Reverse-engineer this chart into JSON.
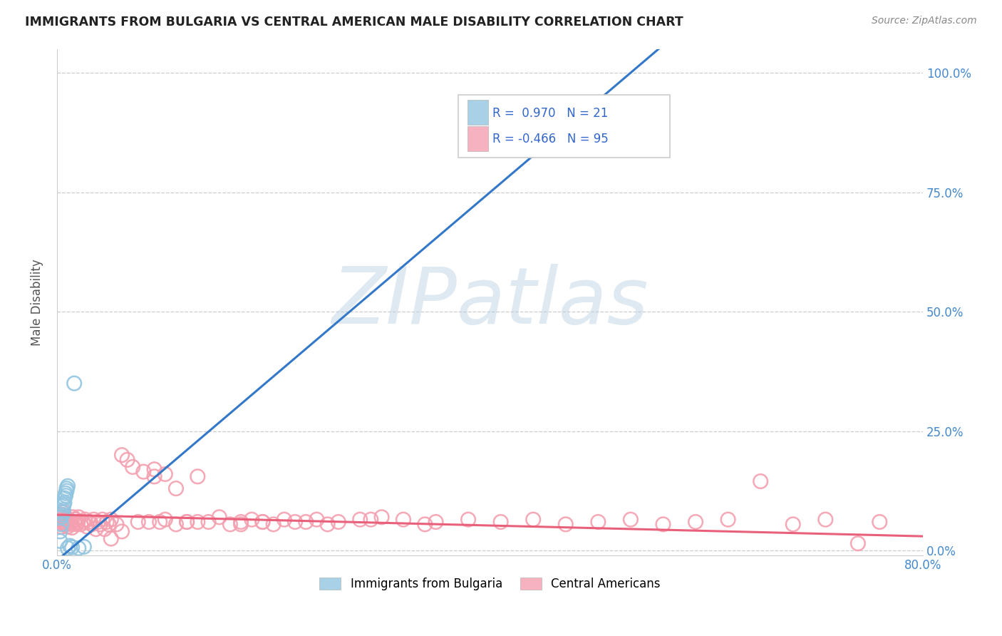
{
  "title": "IMMIGRANTS FROM BULGARIA VS CENTRAL AMERICAN MALE DISABILITY CORRELATION CHART",
  "source": "Source: ZipAtlas.com",
  "ylabel": "Male Disability",
  "xlim": [
    0.0,
    0.8
  ],
  "ylim": [
    -0.01,
    1.05
  ],
  "yticks": [
    0.0,
    0.25,
    0.5,
    0.75,
    1.0
  ],
  "ytick_labels": [
    "0.0%",
    "25.0%",
    "50.0%",
    "75.0%",
    "100.0%"
  ],
  "xticks": [
    0.0,
    0.1,
    0.2,
    0.3,
    0.4,
    0.5,
    0.6,
    0.7,
    0.8
  ],
  "xtick_labels_show": [
    "0.0%",
    "",
    "",
    "",
    "",
    "",
    "",
    "",
    "80.0%"
  ],
  "legend_label_bulgaria": "Immigrants from Bulgaria",
  "legend_label_central": "Central Americans",
  "watermark": "ZIPatlas",
  "blue_color": "#92C5E0",
  "blue_line_color": "#3378C8",
  "pink_color": "#F4A0B0",
  "pink_line_color": "#E8607A",
  "blue_scatter_x": [
    0.003,
    0.003,
    0.004,
    0.004,
    0.005,
    0.005,
    0.006,
    0.006,
    0.007,
    0.007,
    0.008,
    0.008,
    0.009,
    0.009,
    0.01,
    0.01,
    0.012,
    0.014,
    0.016,
    0.02,
    0.025
  ],
  "blue_scatter_y": [
    0.02,
    0.04,
    0.055,
    0.07,
    0.075,
    0.08,
    0.085,
    0.095,
    0.1,
    0.11,
    0.115,
    0.12,
    0.125,
    0.13,
    0.135,
    0.005,
    0.01,
    0.007,
    0.35,
    0.005,
    0.008
  ],
  "blue_line_x": [
    -0.01,
    0.8
  ],
  "blue_line_y": [
    -0.04,
    1.52
  ],
  "pink_line_x": [
    0.0,
    0.8
  ],
  "pink_line_y": [
    0.075,
    0.03
  ],
  "pink_scatter_x": [
    0.003,
    0.004,
    0.004,
    0.005,
    0.005,
    0.006,
    0.006,
    0.007,
    0.007,
    0.008,
    0.008,
    0.009,
    0.009,
    0.01,
    0.01,
    0.011,
    0.012,
    0.013,
    0.014,
    0.015,
    0.016,
    0.017,
    0.018,
    0.019,
    0.02,
    0.022,
    0.024,
    0.026,
    0.028,
    0.03,
    0.032,
    0.034,
    0.036,
    0.038,
    0.04,
    0.042,
    0.044,
    0.046,
    0.048,
    0.05,
    0.055,
    0.06,
    0.065,
    0.07,
    0.075,
    0.08,
    0.085,
    0.09,
    0.095,
    0.1,
    0.11,
    0.12,
    0.13,
    0.14,
    0.15,
    0.16,
    0.17,
    0.18,
    0.19,
    0.2,
    0.22,
    0.24,
    0.26,
    0.28,
    0.3,
    0.32,
    0.35,
    0.38,
    0.41,
    0.44,
    0.47,
    0.5,
    0.53,
    0.56,
    0.59,
    0.62,
    0.65,
    0.68,
    0.71,
    0.74,
    0.76,
    0.09,
    0.13,
    0.1,
    0.12,
    0.06,
    0.05,
    0.17,
    0.19,
    0.21,
    0.23,
    0.25,
    0.11,
    0.29,
    0.34
  ],
  "pink_scatter_y": [
    0.065,
    0.07,
    0.05,
    0.075,
    0.06,
    0.08,
    0.055,
    0.07,
    0.06,
    0.065,
    0.055,
    0.068,
    0.058,
    0.062,
    0.05,
    0.065,
    0.055,
    0.06,
    0.048,
    0.07,
    0.058,
    0.065,
    0.055,
    0.06,
    0.07,
    0.055,
    0.06,
    0.065,
    0.05,
    0.06,
    0.055,
    0.065,
    0.045,
    0.06,
    0.055,
    0.065,
    0.045,
    0.06,
    0.055,
    0.065,
    0.055,
    0.2,
    0.19,
    0.175,
    0.06,
    0.165,
    0.06,
    0.155,
    0.06,
    0.16,
    0.055,
    0.06,
    0.155,
    0.06,
    0.07,
    0.055,
    0.06,
    0.065,
    0.06,
    0.055,
    0.06,
    0.065,
    0.06,
    0.065,
    0.07,
    0.065,
    0.06,
    0.065,
    0.06,
    0.065,
    0.055,
    0.06,
    0.065,
    0.055,
    0.06,
    0.065,
    0.145,
    0.055,
    0.065,
    0.015,
    0.06,
    0.17,
    0.06,
    0.065,
    0.06,
    0.04,
    0.025,
    0.055,
    0.06,
    0.065,
    0.06,
    0.055,
    0.13,
    0.065,
    0.055
  ]
}
